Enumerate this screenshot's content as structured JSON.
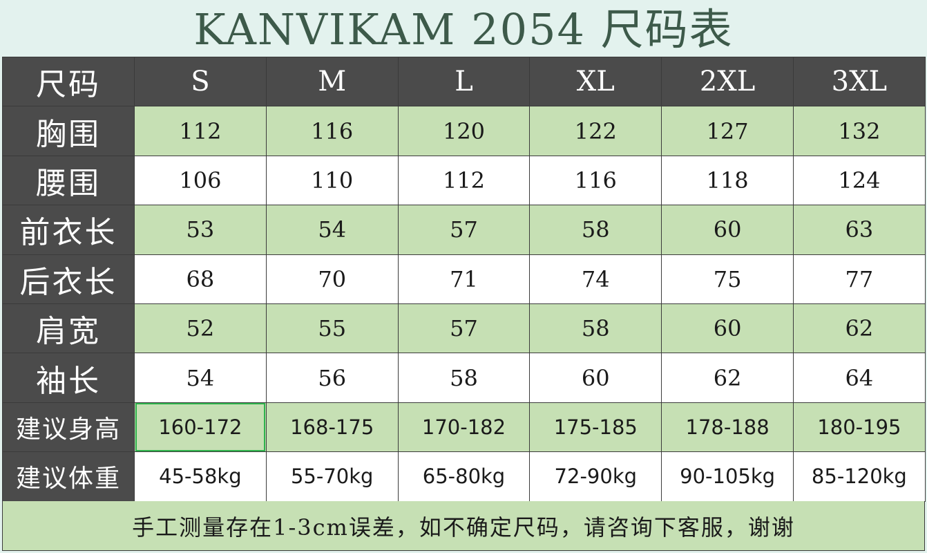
{
  "title": "KANVIKAM 2054 尺码表",
  "header": {
    "label": "尺码",
    "sizes": [
      "S",
      "M",
      "L",
      "XL",
      "2XL",
      "3XL"
    ]
  },
  "rows": [
    {
      "label": "胸围",
      "values": [
        "112",
        "116",
        "120",
        "122",
        "127",
        "132"
      ]
    },
    {
      "label": "腰围",
      "values": [
        "106",
        "110",
        "112",
        "116",
        "118",
        "124"
      ]
    },
    {
      "label": "前衣长",
      "values": [
        "53",
        "54",
        "57",
        "58",
        "60",
        "63"
      ]
    },
    {
      "label": "后衣长",
      "values": [
        "68",
        "70",
        "71",
        "74",
        "75",
        "77"
      ]
    },
    {
      "label": "肩宽",
      "values": [
        "52",
        "55",
        "57",
        "58",
        "60",
        "62"
      ]
    },
    {
      "label": "袖长",
      "values": [
        "54",
        "56",
        "58",
        "60",
        "62",
        "64"
      ]
    },
    {
      "label": "建议身高",
      "values": [
        "160-172",
        "168-175",
        "170-182",
        "175-185",
        "178-188",
        "180-195"
      ]
    },
    {
      "label": "建议体重",
      "values": [
        "45-58kg",
        "55-70kg",
        "65-80kg",
        "72-90kg",
        "90-105kg",
        "85-120kg"
      ]
    }
  ],
  "footer": "手工测量存在1-3cm误差，如不确定尺码，请咨询下客服，谢谢",
  "colors": {
    "header_bg": "#4b4b4b",
    "green_row": "#c6e0b4",
    "white_row": "#ffffff",
    "title_text": "#3d5a4a",
    "page_bg": "#e3f2ee",
    "selected_cell_border": "#2fb34d"
  }
}
